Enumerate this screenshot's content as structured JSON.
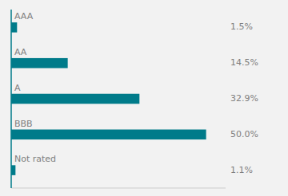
{
  "chart_data": {
    "type": "bar",
    "orientation": "horizontal",
    "categories": [
      "AAA",
      "AA",
      "A",
      "BBB",
      "Not rated"
    ],
    "values": [
      1.5,
      14.5,
      32.9,
      50.0,
      1.1
    ],
    "value_labels": [
      "1.5%",
      "14.5%",
      "32.9%",
      "50.0%",
      "1.1%"
    ],
    "data_labels": true,
    "color": "#007b8a",
    "xlim": [
      0,
      55
    ],
    "xticks": [],
    "grid": false,
    "tick_labels": "y"
  }
}
